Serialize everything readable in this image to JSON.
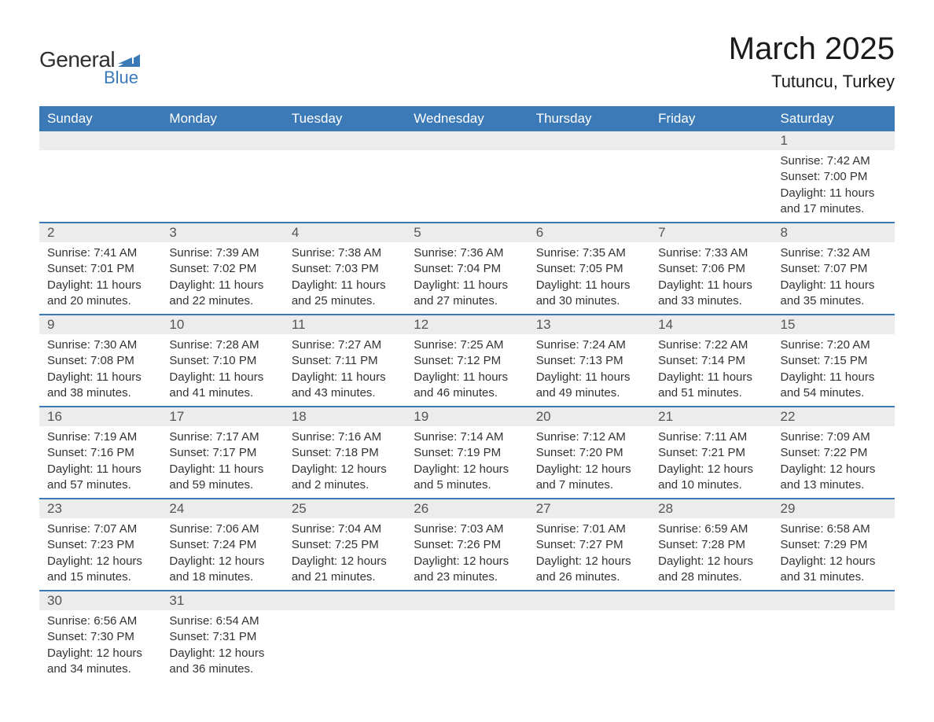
{
  "logo": {
    "text_general": "General",
    "text_blue": "Blue",
    "flag_color": "#3b79b7"
  },
  "header": {
    "month_title": "March 2025",
    "location": "Tutuncu, Turkey"
  },
  "colors": {
    "header_bg": "#3b79b7",
    "header_text": "#ffffff",
    "daynum_bg": "#ececec",
    "daynum_text": "#555555",
    "body_text": "#333333",
    "row_divider": "#3b79b7",
    "page_bg": "#ffffff"
  },
  "typography": {
    "title_fontsize": 40,
    "location_fontsize": 22,
    "dayheader_fontsize": 17,
    "daynum_fontsize": 17,
    "content_fontsize": 15,
    "font_family": "Arial"
  },
  "day_headers": [
    "Sunday",
    "Monday",
    "Tuesday",
    "Wednesday",
    "Thursday",
    "Friday",
    "Saturday"
  ],
  "weeks": [
    [
      {
        "num": "",
        "sunrise": "",
        "sunset": "",
        "daylight": ""
      },
      {
        "num": "",
        "sunrise": "",
        "sunset": "",
        "daylight": ""
      },
      {
        "num": "",
        "sunrise": "",
        "sunset": "",
        "daylight": ""
      },
      {
        "num": "",
        "sunrise": "",
        "sunset": "",
        "daylight": ""
      },
      {
        "num": "",
        "sunrise": "",
        "sunset": "",
        "daylight": ""
      },
      {
        "num": "",
        "sunrise": "",
        "sunset": "",
        "daylight": ""
      },
      {
        "num": "1",
        "sunrise": "Sunrise: 7:42 AM",
        "sunset": "Sunset: 7:00 PM",
        "daylight": "Daylight: 11 hours and 17 minutes."
      }
    ],
    [
      {
        "num": "2",
        "sunrise": "Sunrise: 7:41 AM",
        "sunset": "Sunset: 7:01 PM",
        "daylight": "Daylight: 11 hours and 20 minutes."
      },
      {
        "num": "3",
        "sunrise": "Sunrise: 7:39 AM",
        "sunset": "Sunset: 7:02 PM",
        "daylight": "Daylight: 11 hours and 22 minutes."
      },
      {
        "num": "4",
        "sunrise": "Sunrise: 7:38 AM",
        "sunset": "Sunset: 7:03 PM",
        "daylight": "Daylight: 11 hours and 25 minutes."
      },
      {
        "num": "5",
        "sunrise": "Sunrise: 7:36 AM",
        "sunset": "Sunset: 7:04 PM",
        "daylight": "Daylight: 11 hours and 27 minutes."
      },
      {
        "num": "6",
        "sunrise": "Sunrise: 7:35 AM",
        "sunset": "Sunset: 7:05 PM",
        "daylight": "Daylight: 11 hours and 30 minutes."
      },
      {
        "num": "7",
        "sunrise": "Sunrise: 7:33 AM",
        "sunset": "Sunset: 7:06 PM",
        "daylight": "Daylight: 11 hours and 33 minutes."
      },
      {
        "num": "8",
        "sunrise": "Sunrise: 7:32 AM",
        "sunset": "Sunset: 7:07 PM",
        "daylight": "Daylight: 11 hours and 35 minutes."
      }
    ],
    [
      {
        "num": "9",
        "sunrise": "Sunrise: 7:30 AM",
        "sunset": "Sunset: 7:08 PM",
        "daylight": "Daylight: 11 hours and 38 minutes."
      },
      {
        "num": "10",
        "sunrise": "Sunrise: 7:28 AM",
        "sunset": "Sunset: 7:10 PM",
        "daylight": "Daylight: 11 hours and 41 minutes."
      },
      {
        "num": "11",
        "sunrise": "Sunrise: 7:27 AM",
        "sunset": "Sunset: 7:11 PM",
        "daylight": "Daylight: 11 hours and 43 minutes."
      },
      {
        "num": "12",
        "sunrise": "Sunrise: 7:25 AM",
        "sunset": "Sunset: 7:12 PM",
        "daylight": "Daylight: 11 hours and 46 minutes."
      },
      {
        "num": "13",
        "sunrise": "Sunrise: 7:24 AM",
        "sunset": "Sunset: 7:13 PM",
        "daylight": "Daylight: 11 hours and 49 minutes."
      },
      {
        "num": "14",
        "sunrise": "Sunrise: 7:22 AM",
        "sunset": "Sunset: 7:14 PM",
        "daylight": "Daylight: 11 hours and 51 minutes."
      },
      {
        "num": "15",
        "sunrise": "Sunrise: 7:20 AM",
        "sunset": "Sunset: 7:15 PM",
        "daylight": "Daylight: 11 hours and 54 minutes."
      }
    ],
    [
      {
        "num": "16",
        "sunrise": "Sunrise: 7:19 AM",
        "sunset": "Sunset: 7:16 PM",
        "daylight": "Daylight: 11 hours and 57 minutes."
      },
      {
        "num": "17",
        "sunrise": "Sunrise: 7:17 AM",
        "sunset": "Sunset: 7:17 PM",
        "daylight": "Daylight: 11 hours and 59 minutes."
      },
      {
        "num": "18",
        "sunrise": "Sunrise: 7:16 AM",
        "sunset": "Sunset: 7:18 PM",
        "daylight": "Daylight: 12 hours and 2 minutes."
      },
      {
        "num": "19",
        "sunrise": "Sunrise: 7:14 AM",
        "sunset": "Sunset: 7:19 PM",
        "daylight": "Daylight: 12 hours and 5 minutes."
      },
      {
        "num": "20",
        "sunrise": "Sunrise: 7:12 AM",
        "sunset": "Sunset: 7:20 PM",
        "daylight": "Daylight: 12 hours and 7 minutes."
      },
      {
        "num": "21",
        "sunrise": "Sunrise: 7:11 AM",
        "sunset": "Sunset: 7:21 PM",
        "daylight": "Daylight: 12 hours and 10 minutes."
      },
      {
        "num": "22",
        "sunrise": "Sunrise: 7:09 AM",
        "sunset": "Sunset: 7:22 PM",
        "daylight": "Daylight: 12 hours and 13 minutes."
      }
    ],
    [
      {
        "num": "23",
        "sunrise": "Sunrise: 7:07 AM",
        "sunset": "Sunset: 7:23 PM",
        "daylight": "Daylight: 12 hours and 15 minutes."
      },
      {
        "num": "24",
        "sunrise": "Sunrise: 7:06 AM",
        "sunset": "Sunset: 7:24 PM",
        "daylight": "Daylight: 12 hours and 18 minutes."
      },
      {
        "num": "25",
        "sunrise": "Sunrise: 7:04 AM",
        "sunset": "Sunset: 7:25 PM",
        "daylight": "Daylight: 12 hours and 21 minutes."
      },
      {
        "num": "26",
        "sunrise": "Sunrise: 7:03 AM",
        "sunset": "Sunset: 7:26 PM",
        "daylight": "Daylight: 12 hours and 23 minutes."
      },
      {
        "num": "27",
        "sunrise": "Sunrise: 7:01 AM",
        "sunset": "Sunset: 7:27 PM",
        "daylight": "Daylight: 12 hours and 26 minutes."
      },
      {
        "num": "28",
        "sunrise": "Sunrise: 6:59 AM",
        "sunset": "Sunset: 7:28 PM",
        "daylight": "Daylight: 12 hours and 28 minutes."
      },
      {
        "num": "29",
        "sunrise": "Sunrise: 6:58 AM",
        "sunset": "Sunset: 7:29 PM",
        "daylight": "Daylight: 12 hours and 31 minutes."
      }
    ],
    [
      {
        "num": "30",
        "sunrise": "Sunrise: 6:56 AM",
        "sunset": "Sunset: 7:30 PM",
        "daylight": "Daylight: 12 hours and 34 minutes."
      },
      {
        "num": "31",
        "sunrise": "Sunrise: 6:54 AM",
        "sunset": "Sunset: 7:31 PM",
        "daylight": "Daylight: 12 hours and 36 minutes."
      },
      {
        "num": "",
        "sunrise": "",
        "sunset": "",
        "daylight": ""
      },
      {
        "num": "",
        "sunrise": "",
        "sunset": "",
        "daylight": ""
      },
      {
        "num": "",
        "sunrise": "",
        "sunset": "",
        "daylight": ""
      },
      {
        "num": "",
        "sunrise": "",
        "sunset": "",
        "daylight": ""
      },
      {
        "num": "",
        "sunrise": "",
        "sunset": "",
        "daylight": ""
      }
    ]
  ]
}
